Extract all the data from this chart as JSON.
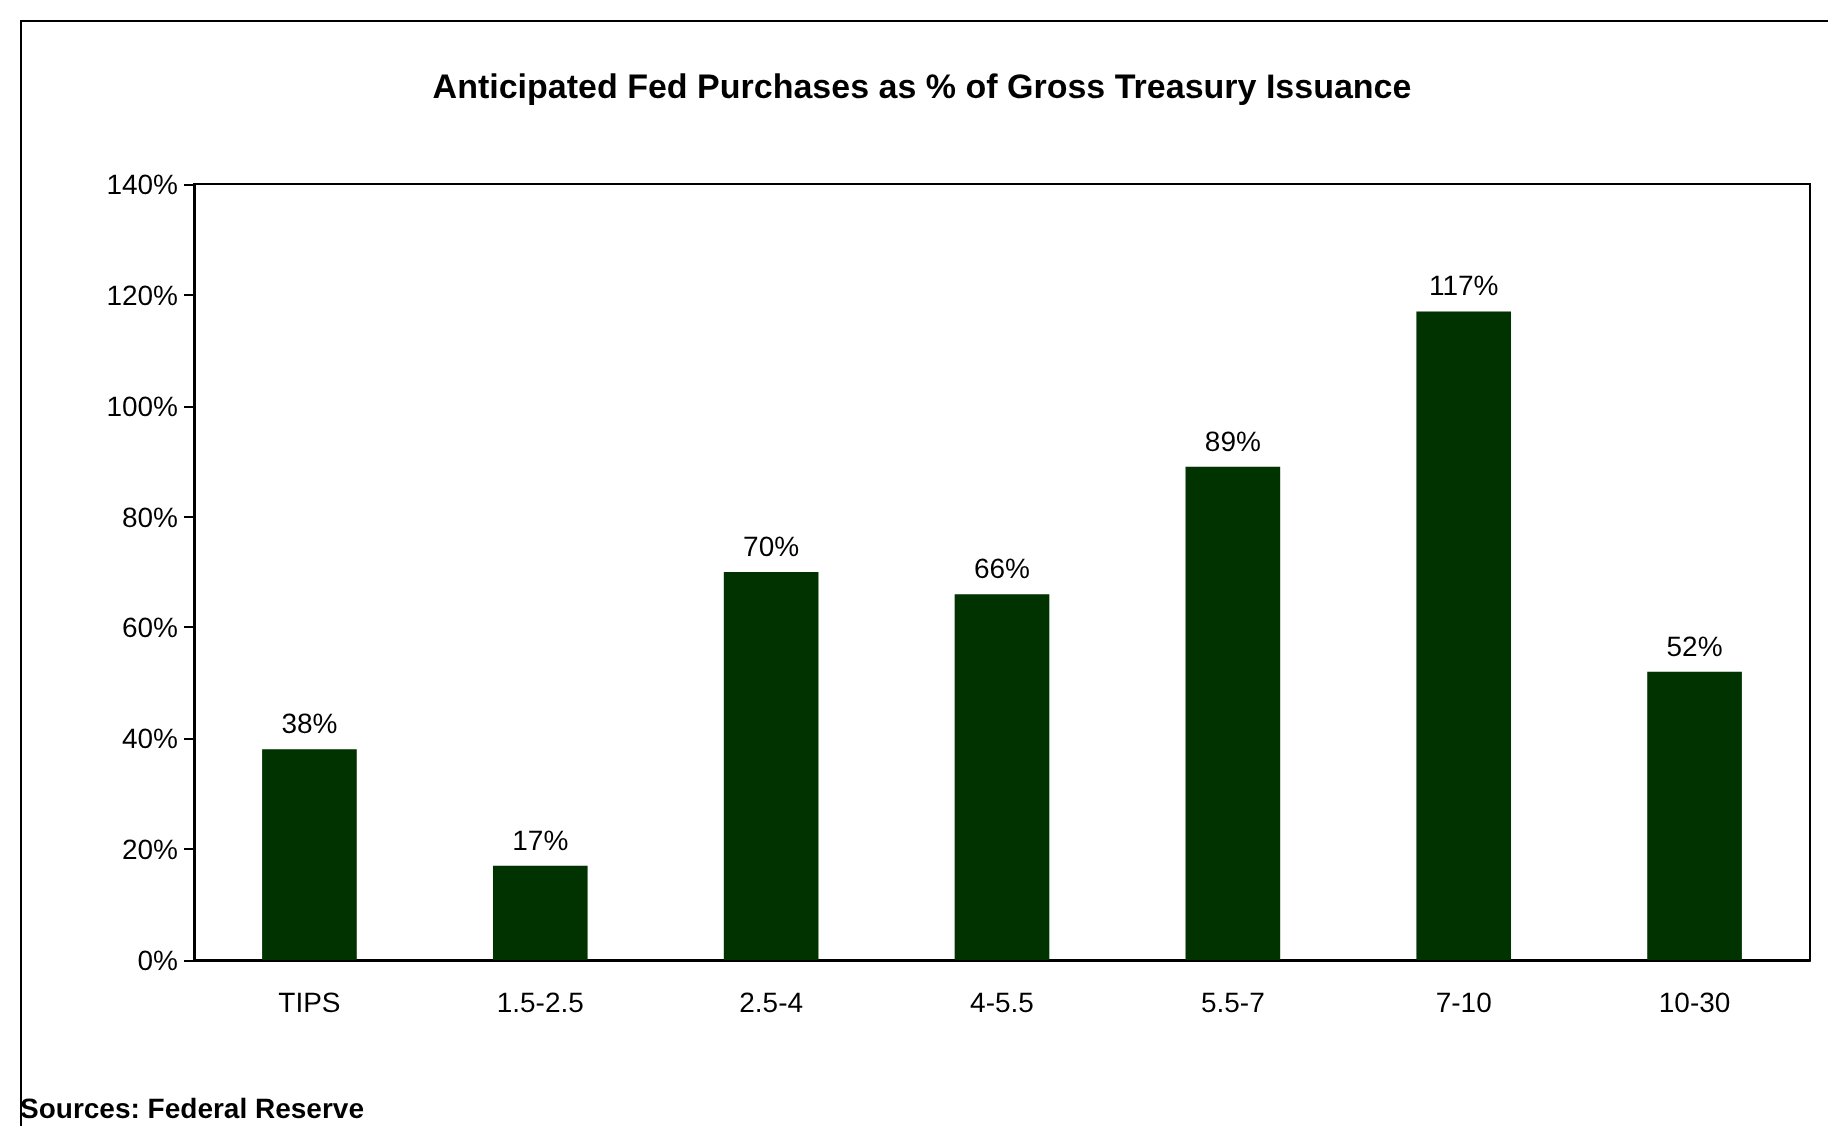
{
  "chart_data": {
    "type": "bar",
    "title": "Anticipated Fed Purchases as % of Gross Treasury Issuance",
    "categories": [
      "TIPS",
      "1.5-2.5",
      "2.5-4",
      "4-5.5",
      "5.5-7",
      "7-10",
      "10-30"
    ],
    "values": [
      38,
      17,
      70,
      66,
      89,
      117,
      52
    ],
    "value_labels": [
      "38%",
      "17%",
      "70%",
      "66%",
      "89%",
      "117%",
      "52%"
    ],
    "color": "#003300",
    "ylim": [
      0,
      140
    ],
    "yticks": [
      {
        "value": 0,
        "label": "0%"
      },
      {
        "value": 20,
        "label": "20%"
      },
      {
        "value": 40,
        "label": "40%"
      },
      {
        "value": 60,
        "label": "60%"
      },
      {
        "value": 80,
        "label": "80%"
      },
      {
        "value": 100,
        "label": "100%"
      },
      {
        "value": 120,
        "label": "120%"
      },
      {
        "value": 140,
        "label": "140%"
      }
    ],
    "grid": false,
    "annotations": [
      "Sources: Federal Reserve"
    ]
  }
}
